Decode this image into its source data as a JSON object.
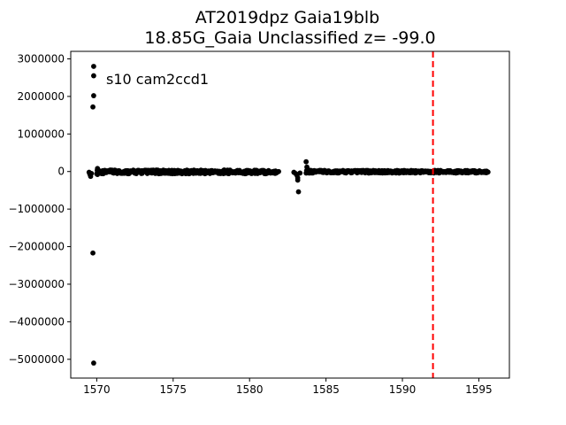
{
  "chart_data": {
    "type": "scatter",
    "title_line1": "AT2019dpz  Gaia19blb",
    "title_line2": "18.85G_Gaia Unclassified z= -99.0",
    "annotation": "s10 cam2ccd1",
    "xlim": [
      1568.3,
      1597.0
    ],
    "ylim": [
      -5500000,
      3200000
    ],
    "xticks": [
      1570,
      1575,
      1580,
      1585,
      1590,
      1595
    ],
    "yticks": [
      3000000,
      2000000,
      1000000,
      0,
      -1000000,
      -2000000,
      -3000000,
      -4000000,
      -5000000
    ],
    "ytick_labels": [
      "3000000",
      "2000000",
      "1000000",
      "0",
      "−1000000",
      "−2000000",
      "−3000000",
      "−4000000",
      "−5000000"
    ],
    "vline": {
      "x": 1592.0,
      "color": "#ff0000",
      "style": "dashed"
    },
    "marker_color": "#000000",
    "line_color": "#ff0000",
    "dense_segments": [
      {
        "x_start": 1570.0,
        "x_end": 1581.8,
        "y_min": -60000,
        "y_max": 40000
      },
      {
        "x_start": 1583.7,
        "x_end": 1595.6,
        "y_min": -40000,
        "y_max": 30000
      }
    ],
    "points": [
      {
        "x": 1569.5,
        "y": -20000
      },
      {
        "x": 1569.55,
        "y": -70000
      },
      {
        "x": 1569.6,
        "y": -130000
      },
      {
        "x": 1569.65,
        "y": -50000
      },
      {
        "x": 1569.8,
        "y": 2800000
      },
      {
        "x": 1569.8,
        "y": 2550000
      },
      {
        "x": 1569.8,
        "y": 2020000
      },
      {
        "x": 1569.75,
        "y": 1720000
      },
      {
        "x": 1569.75,
        "y": -2170000
      },
      {
        "x": 1569.8,
        "y": -5100000
      },
      {
        "x": 1570.05,
        "y": 80000
      },
      {
        "x": 1570.1,
        "y": 40000
      },
      {
        "x": 1570.05,
        "y": -80000
      },
      {
        "x": 1581.9,
        "y": 0
      },
      {
        "x": 1582.9,
        "y": -20000
      },
      {
        "x": 1583.0,
        "y": -50000
      },
      {
        "x": 1583.1,
        "y": -100000
      },
      {
        "x": 1583.15,
        "y": -230000
      },
      {
        "x": 1583.15,
        "y": -170000
      },
      {
        "x": 1583.2,
        "y": -540000
      },
      {
        "x": 1583.3,
        "y": -40000
      },
      {
        "x": 1583.7,
        "y": 260000
      },
      {
        "x": 1583.75,
        "y": 120000
      },
      {
        "x": 1583.8,
        "y": 60000
      },
      {
        "x": 1583.9,
        "y": -40000
      },
      {
        "x": 1584.0,
        "y": 30000
      }
    ]
  }
}
